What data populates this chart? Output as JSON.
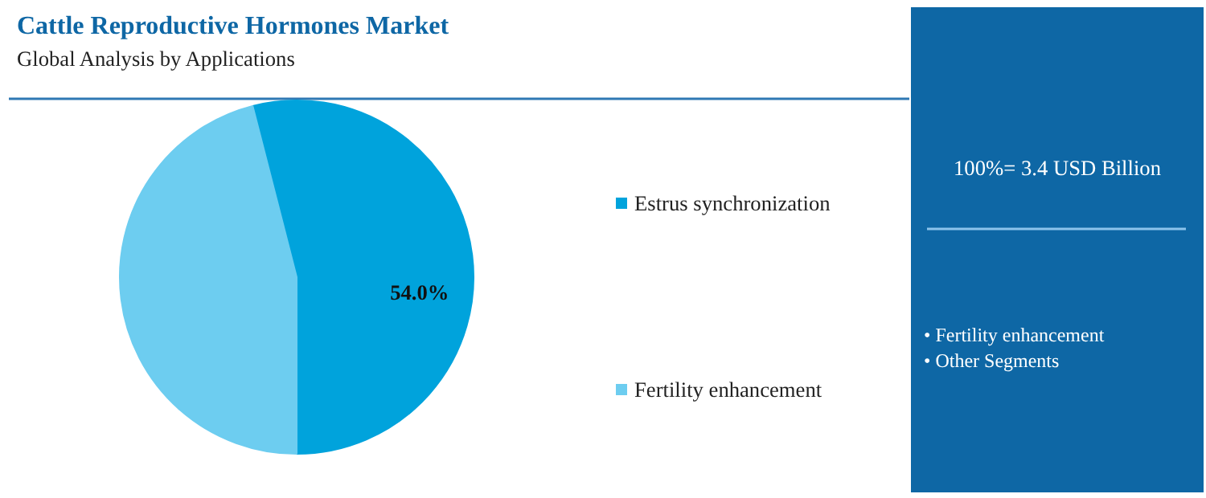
{
  "chart_data": {
    "type": "pie",
    "title": "Cattle Reproductive Hormones Market",
    "subtitle": "Global Analysis by Applications",
    "categories": [
      "Estrus synchronization",
      "Fertility enhancement"
    ],
    "values": [
      54.0,
      46.0
    ],
    "colors": [
      "#00a3dc",
      "#6dcdf0"
    ],
    "value_labels": [
      "54.0%",
      null
    ],
    "legend": "right",
    "annotations": [
      "100%= 3.4 USD Billion",
      "• Fertility enhancement",
      "• Other Segments"
    ]
  }
}
